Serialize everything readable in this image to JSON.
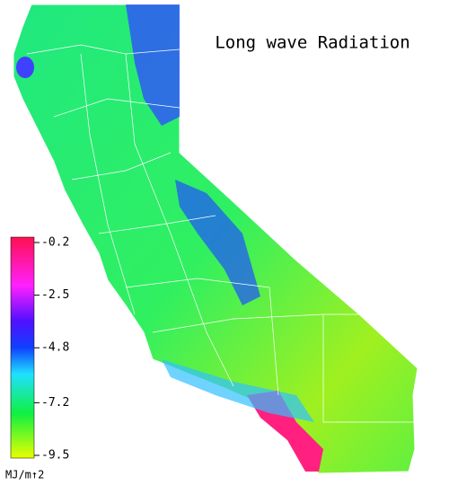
{
  "title": "Long wave Radiation",
  "colorbar": {
    "lim": [
      -0.2,
      -9.5
    ],
    "ticks": [
      -0.2,
      -2.5,
      -4.8,
      -7.2,
      -9.5
    ],
    "unit": "MJ/m↑2"
  }
}
